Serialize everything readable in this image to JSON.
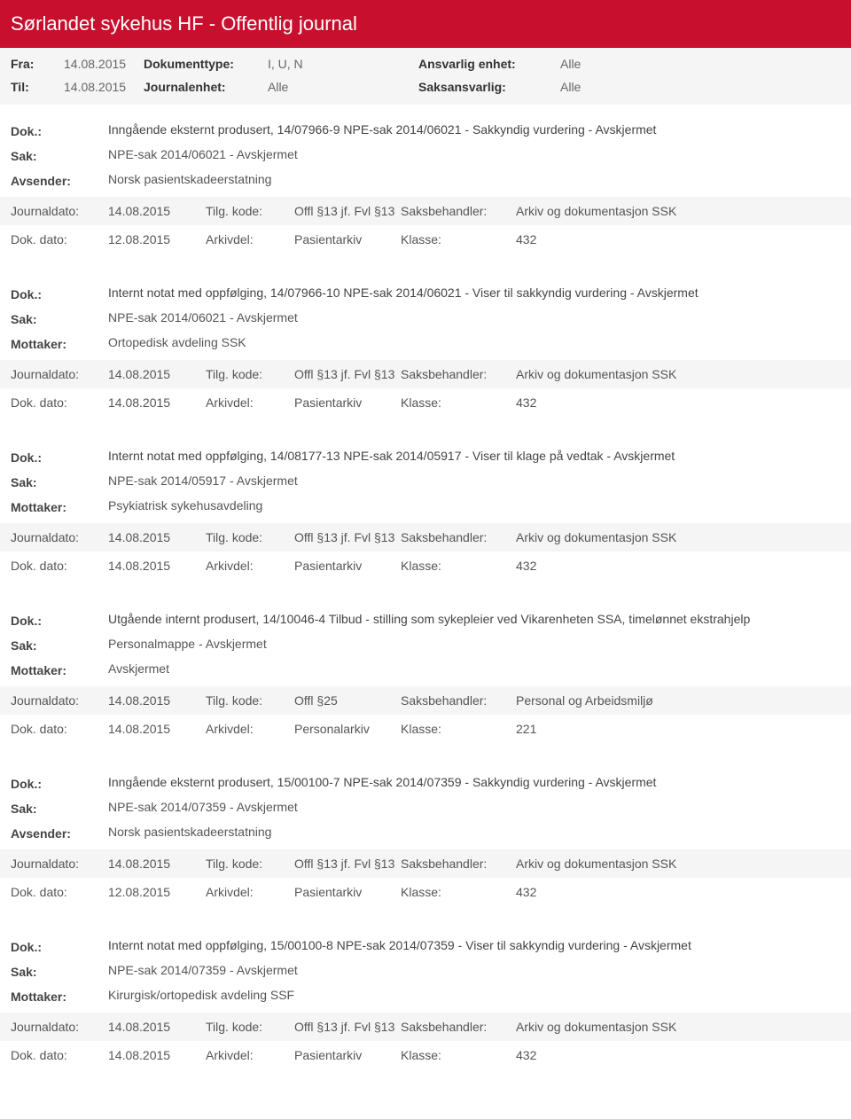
{
  "header": {
    "title": "Sørlandet sykehus HF - Offentlig journal"
  },
  "filters": {
    "fra_label": "Fra:",
    "fra_value": "14.08.2015",
    "til_label": "Til:",
    "til_value": "14.08.2015",
    "doktype_label": "Dokumenttype:",
    "doktype_value": "I, U, N",
    "journalenhet_label": "Journalenhet:",
    "journalenhet_value": "Alle",
    "ansvarlig_label": "Ansvarlig enhet:",
    "ansvarlig_value": "Alle",
    "saksansvarlig_label": "Saksansvarlig:",
    "saksansvarlig_value": "Alle"
  },
  "labels": {
    "dok": "Dok.:",
    "sak": "Sak:",
    "avsender": "Avsender:",
    "mottaker": "Mottaker:",
    "journaldato": "Journaldato:",
    "dokdato": "Dok. dato:",
    "tilgkode": "Tilg. kode:",
    "arkivdel": "Arkivdel:",
    "saksbehandler": "Saksbehandler:",
    "klasse": "Klasse:"
  },
  "records": [
    {
      "dok": "Inngående eksternt produsert, 14/07966-9 NPE-sak 2014/06021 - Sakkyndig vurdering - Avskjermet",
      "sak": "NPE-sak 2014/06021 - Avskjermet",
      "party_label": "Avsender:",
      "party_value": "Norsk pasientskadeerstatning",
      "journaldato": "14.08.2015",
      "tilgkode": "Offl §13 jf. Fvl §13",
      "saksbehandler": "Arkiv og dokumentasjon SSK",
      "dokdato": "12.08.2015",
      "arkivdel": "Pasientarkiv",
      "klasse": "432"
    },
    {
      "dok": "Internt notat med oppfølging, 14/07966-10 NPE-sak 2014/06021 - Viser til sakkyndig vurdering - Avskjermet",
      "sak": "NPE-sak 2014/06021 - Avskjermet",
      "party_label": "Mottaker:",
      "party_value": "Ortopedisk avdeling SSK",
      "journaldato": "14.08.2015",
      "tilgkode": "Offl §13 jf. Fvl §13",
      "saksbehandler": "Arkiv og dokumentasjon SSK",
      "dokdato": "14.08.2015",
      "arkivdel": "Pasientarkiv",
      "klasse": "432"
    },
    {
      "dok": "Internt notat med oppfølging, 14/08177-13 NPE-sak 2014/05917 - Viser til klage på vedtak - Avskjermet",
      "sak": "NPE-sak 2014/05917 - Avskjermet",
      "party_label": "Mottaker:",
      "party_value": "Psykiatrisk sykehusavdeling",
      "journaldato": "14.08.2015",
      "tilgkode": "Offl §13 jf. Fvl §13",
      "saksbehandler": "Arkiv og dokumentasjon SSK",
      "dokdato": "14.08.2015",
      "arkivdel": "Pasientarkiv",
      "klasse": "432"
    },
    {
      "dok": "Utgående internt produsert, 14/10046-4 Tilbud - stilling som sykepleier ved Vikarenheten SSA, timelønnet ekstrahjelp",
      "sak": "Personalmappe - Avskjermet",
      "party_label": "Mottaker:",
      "party_value": "Avskjermet",
      "journaldato": "14.08.2015",
      "tilgkode": "Offl §25",
      "saksbehandler": "Personal og Arbeidsmiljø",
      "dokdato": "14.08.2015",
      "arkivdel": "Personalarkiv",
      "klasse": "221"
    },
    {
      "dok": "Inngående eksternt produsert, 15/00100-7 NPE-sak 2014/07359 - Sakkyndig vurdering - Avskjermet",
      "sak": "NPE-sak 2014/07359 - Avskjermet",
      "party_label": "Avsender:",
      "party_value": "Norsk pasientskadeerstatning",
      "journaldato": "14.08.2015",
      "tilgkode": "Offl §13 jf. Fvl §13",
      "saksbehandler": "Arkiv og dokumentasjon SSK",
      "dokdato": "12.08.2015",
      "arkivdel": "Pasientarkiv",
      "klasse": "432"
    },
    {
      "dok": "Internt notat med oppfølging, 15/00100-8 NPE-sak 2014/07359 - Viser til sakkyndig vurdering - Avskjermet",
      "sak": "NPE-sak 2014/07359 - Avskjermet",
      "party_label": "Mottaker:",
      "party_value": "Kirurgisk/ortopedisk avdeling SSF",
      "journaldato": "14.08.2015",
      "tilgkode": "Offl §13 jf. Fvl §13",
      "saksbehandler": "Arkiv og dokumentasjon SSK",
      "dokdato": "14.08.2015",
      "arkivdel": "Pasientarkiv",
      "klasse": "432"
    }
  ]
}
